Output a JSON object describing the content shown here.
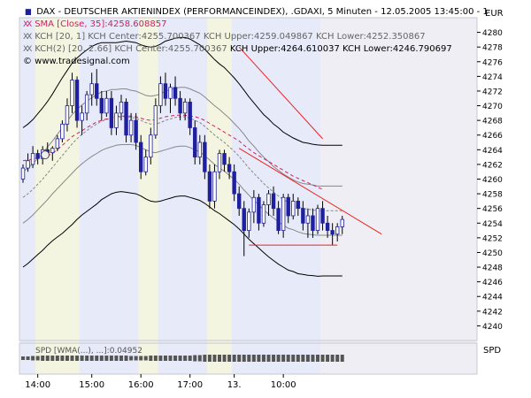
{
  "header": {
    "line1": "DAX  - DEUTSCHER AKTIENINDEX (PERFORMANCEINDEX), .GDAXI, 5 Minuten - 12.05.2005 13:45:00 - 1",
    "currency": "EUR",
    "line2": "SMA [Close, 35]:4258.608857",
    "line3": "KCH [20, 1] KCH Center:4255.700367 KCH Upper:4259.049867 KCH Lower:4252.350867",
    "line4a": "KCH(2) [20, 2.66] KCH Center:4255.700367 ",
    "line4b": "KCH Upper:4264.610037 KCH Lower:4246.790697",
    "source": "© www.tradesignal.com",
    "line1_mark": "▮▮",
    "line2_mark": "XX",
    "line3_mark": "XX",
    "line4_mark": "XX"
  },
  "subpanel": {
    "label": "SPD [WMA(...), ...]:0.04952",
    "axis_label": "SPD"
  },
  "colors": {
    "candle_up": "#1f1fa0",
    "candle_down": "#1f1fa0",
    "sma": "#cc2266",
    "kch_inner": "#888888",
    "kch_outer": "#000000",
    "trendline": "#ee2222",
    "zone_blue": "#e6eaf9",
    "zone_yellow": "#f3f5e0",
    "plot_bg": "#eeeef4"
  },
  "chart_data": {
    "type": "candlestick",
    "y_axis": {
      "min": 4238,
      "max": 4282,
      "ticks": [
        4240,
        4242,
        4244,
        4246,
        4248,
        4250,
        4252,
        4254,
        4256,
        4258,
        4260,
        4262,
        4264,
        4266,
        4268,
        4270,
        4272,
        4274,
        4276,
        4278,
        4280
      ],
      "side": "right"
    },
    "x_axis": {
      "tick_labels": [
        "14:00",
        "15:00",
        "16:00",
        "17:00",
        "13.",
        "10:00"
      ]
    },
    "candles": [
      {
        "o": 4260.0,
        "h": 4262.0,
        "l": 4259.5,
        "c": 4261.5
      },
      {
        "o": 4261.5,
        "h": 4263.5,
        "l": 4261.0,
        "c": 4262.5
      },
      {
        "o": 4262.0,
        "h": 4264.5,
        "l": 4261.5,
        "c": 4263.5
      },
      {
        "o": 4263.5,
        "h": 4264.0,
        "l": 4262.0,
        "c": 4262.8
      },
      {
        "o": 4262.8,
        "h": 4264.5,
        "l": 4262.0,
        "c": 4264.0
      },
      {
        "o": 4264.0,
        "h": 4265.0,
        "l": 4263.0,
        "c": 4263.6
      },
      {
        "o": 4263.6,
        "h": 4264.5,
        "l": 4262.5,
        "c": 4264.2
      },
      {
        "o": 4264.2,
        "h": 4266.0,
        "l": 4263.8,
        "c": 4265.5
      },
      {
        "o": 4265.5,
        "h": 4268.0,
        "l": 4265.0,
        "c": 4267.5
      },
      {
        "o": 4267.5,
        "h": 4271.0,
        "l": 4266.5,
        "c": 4270.0
      },
      {
        "o": 4270.0,
        "h": 4274.5,
        "l": 4269.0,
        "c": 4273.5
      },
      {
        "o": 4273.5,
        "h": 4274.0,
        "l": 4267.0,
        "c": 4268.0
      },
      {
        "o": 4268.0,
        "h": 4270.0,
        "l": 4266.0,
        "c": 4269.0
      },
      {
        "o": 4269.0,
        "h": 4272.0,
        "l": 4268.0,
        "c": 4271.5
      },
      {
        "o": 4271.5,
        "h": 4274.5,
        "l": 4270.0,
        "c": 4273.0
      },
      {
        "o": 4273.0,
        "h": 4275.0,
        "l": 4270.0,
        "c": 4271.0
      },
      {
        "o": 4271.0,
        "h": 4272.0,
        "l": 4268.0,
        "c": 4269.0
      },
      {
        "o": 4269.0,
        "h": 4272.0,
        "l": 4268.5,
        "c": 4271.0
      },
      {
        "o": 4271.0,
        "h": 4272.0,
        "l": 4266.0,
        "c": 4267.0
      },
      {
        "o": 4267.0,
        "h": 4270.0,
        "l": 4266.0,
        "c": 4269.0
      },
      {
        "o": 4269.0,
        "h": 4271.5,
        "l": 4268.0,
        "c": 4270.5
      },
      {
        "o": 4270.5,
        "h": 4271.0,
        "l": 4265.0,
        "c": 4266.0
      },
      {
        "o": 4266.0,
        "h": 4269.0,
        "l": 4265.0,
        "c": 4268.0
      },
      {
        "o": 4268.0,
        "h": 4269.0,
        "l": 4264.0,
        "c": 4265.0
      },
      {
        "o": 4265.0,
        "h": 4266.0,
        "l": 4260.0,
        "c": 4261.0
      },
      {
        "o": 4261.0,
        "h": 4264.0,
        "l": 4260.5,
        "c": 4263.0
      },
      {
        "o": 4263.0,
        "h": 4267.0,
        "l": 4262.0,
        "c": 4266.0
      },
      {
        "o": 4266.0,
        "h": 4271.0,
        "l": 4265.5,
        "c": 4270.0
      },
      {
        "o": 4270.0,
        "h": 4274.0,
        "l": 4269.0,
        "c": 4273.0
      },
      {
        "o": 4273.0,
        "h": 4274.5,
        "l": 4270.0,
        "c": 4271.0
      },
      {
        "o": 4271.0,
        "h": 4273.0,
        "l": 4269.0,
        "c": 4272.5
      },
      {
        "o": 4272.5,
        "h": 4274.0,
        "l": 4270.0,
        "c": 4271.0
      },
      {
        "o": 4271.0,
        "h": 4272.0,
        "l": 4268.0,
        "c": 4269.0
      },
      {
        "o": 4269.0,
        "h": 4271.0,
        "l": 4268.0,
        "c": 4270.5
      },
      {
        "o": 4270.5,
        "h": 4271.0,
        "l": 4266.0,
        "c": 4267.0
      },
      {
        "o": 4267.0,
        "h": 4268.0,
        "l": 4262.0,
        "c": 4263.0
      },
      {
        "o": 4263.0,
        "h": 4266.0,
        "l": 4262.0,
        "c": 4265.0
      },
      {
        "o": 4265.0,
        "h": 4266.0,
        "l": 4260.0,
        "c": 4261.0
      },
      {
        "o": 4261.0,
        "h": 4262.0,
        "l": 4256.0,
        "c": 4257.0
      },
      {
        "o": 4257.0,
        "h": 4262.0,
        "l": 4256.0,
        "c": 4261.0
      },
      {
        "o": 4261.0,
        "h": 4264.0,
        "l": 4260.0,
        "c": 4263.5
      },
      {
        "o": 4263.5,
        "h": 4264.0,
        "l": 4261.0,
        "c": 4262.0
      },
      {
        "o": 4262.0,
        "h": 4263.0,
        "l": 4260.0,
        "c": 4261.0
      },
      {
        "o": 4261.0,
        "h": 4262.0,
        "l": 4257.0,
        "c": 4258.0
      },
      {
        "o": 4258.0,
        "h": 4259.0,
        "l": 4255.0,
        "c": 4256.0
      },
      {
        "o": 4256.0,
        "h": 4257.0,
        "l": 4249.5,
        "c": 4253.0
      },
      {
        "o": 4253.0,
        "h": 4256.0,
        "l": 4252.0,
        "c": 4255.5
      },
      {
        "o": 4255.5,
        "h": 4258.5,
        "l": 4254.0,
        "c": 4257.5
      },
      {
        "o": 4257.5,
        "h": 4258.0,
        "l": 4253.0,
        "c": 4254.0
      },
      {
        "o": 4254.0,
        "h": 4257.0,
        "l": 4253.5,
        "c": 4256.5
      },
      {
        "o": 4256.5,
        "h": 4258.5,
        "l": 4255.0,
        "c": 4258.0
      },
      {
        "o": 4258.0,
        "h": 4259.0,
        "l": 4255.0,
        "c": 4256.0
      },
      {
        "o": 4256.0,
        "h": 4257.0,
        "l": 4252.5,
        "c": 4253.0
      },
      {
        "o": 4253.0,
        "h": 4258.0,
        "l": 4252.0,
        "c": 4257.5
      },
      {
        "o": 4257.5,
        "h": 4258.0,
        "l": 4254.0,
        "c": 4255.0
      },
      {
        "o": 4255.0,
        "h": 4258.0,
        "l": 4254.5,
        "c": 4257.0
      },
      {
        "o": 4257.0,
        "h": 4257.5,
        "l": 4255.0,
        "c": 4256.0
      },
      {
        "o": 4256.0,
        "h": 4257.0,
        "l": 4253.0,
        "c": 4254.0
      },
      {
        "o": 4254.0,
        "h": 4256.0,
        "l": 4252.0,
        "c": 4255.0
      },
      {
        "o": 4255.0,
        "h": 4256.0,
        "l": 4252.0,
        "c": 4253.0
      },
      {
        "o": 4253.0,
        "h": 4256.5,
        "l": 4252.5,
        "c": 4256.0
      },
      {
        "o": 4256.0,
        "h": 4257.0,
        "l": 4253.0,
        "c": 4254.0
      },
      {
        "o": 4254.0,
        "h": 4255.0,
        "l": 4252.0,
        "c": 4253.0
      },
      {
        "o": 4253.0,
        "h": 4254.0,
        "l": 4251.0,
        "c": 4252.5
      },
      {
        "o": 4252.5,
        "h": 4254.0,
        "l": 4251.5,
        "c": 4253.5
      },
      {
        "o": 4253.5,
        "h": 4255.0,
        "l": 4252.5,
        "c": 4254.5
      }
    ],
    "sma": [
      4262.5,
      4262.6,
      4262.7,
      4262.9,
      4263.0,
      4263.2,
      4263.5,
      4264.0,
      4264.6,
      4265.2,
      4265.8,
      4266.2,
      4266.6,
      4267.0,
      4267.4,
      4267.8,
      4268.0,
      4268.2,
      4268.4,
      4268.5,
      4268.6,
      4268.6,
      4268.6,
      4268.5,
      4268.3,
      4268.1,
      4268.0,
      4268.1,
      4268.3,
      4268.5,
      4268.6,
      4268.7,
      4268.7,
      4268.7,
      4268.6,
      4268.5,
      4268.3,
      4268.0,
      4267.6,
      4267.2,
      4266.8,
      4266.4,
      4266.0,
      4265.6,
      4265.2,
      4264.6,
      4264.1,
      4263.6,
      4263.2,
      4262.8,
      4262.4,
      4262.0,
      4261.6,
      4261.2,
      4260.8,
      4260.4,
      4260.1,
      4259.8,
      4259.5,
      4259.2,
      4258.9,
      4258.6
    ],
    "kch_center": [
      4257.5,
      4258.0,
      4258.6,
      4259.3,
      4260.0,
      4260.8,
      4261.6,
      4262.4,
      4263.2,
      4264.0,
      4264.8,
      4265.5,
      4266.1,
      4266.6,
      4267.1,
      4267.5,
      4267.9,
      4268.1,
      4268.3,
      4268.4,
      4268.5,
      4268.5,
      4268.4,
      4268.3,
      4268.0,
      4267.7,
      4267.5,
      4267.5,
      4267.7,
      4268.0,
      4268.2,
      4268.4,
      4268.5,
      4268.5,
      4268.3,
      4268.0,
      4267.7,
      4267.2,
      4266.6,
      4266.0,
      4265.5,
      4265.0,
      4264.4,
      4263.8,
      4263.1,
      4262.3,
      4261.5,
      4260.8,
      4260.1,
      4259.4,
      4258.8,
      4258.2,
      4257.7,
      4257.2,
      4256.8,
      4256.5,
      4256.2,
      4256.0,
      4255.9,
      4255.8,
      4255.7,
      4255.7,
      4255.7,
      4255.7,
      4255.7,
      4255.7
    ],
    "kch_inner_width": [
      3.5,
      3.5,
      3.5,
      3.5,
      3.5,
      3.6,
      3.6,
      3.7,
      3.8,
      3.9,
      4.0,
      4.0,
      4.0,
      4.0,
      4.0,
      4.0,
      4.0,
      3.9,
      3.9,
      3.8,
      3.8,
      3.8,
      3.7,
      3.7,
      3.7,
      3.7,
      3.8,
      3.9,
      3.9,
      4.0,
      4.0,
      4.0,
      4.0,
      4.0,
      4.0,
      4.0,
      4.0,
      4.0,
      4.0,
      4.0,
      4.0,
      3.9,
      3.9,
      3.8,
      3.8,
      3.8,
      3.7,
      3.7,
      3.6,
      3.6,
      3.6,
      3.5,
      3.5,
      3.5,
      3.5,
      3.4,
      3.4,
      3.4,
      3.4,
      3.4,
      3.35,
      3.35,
      3.35,
      3.35,
      3.35,
      3.35
    ],
    "kch_outer_width": [
      9.5,
      9.5,
      9.5,
      9.6,
      9.7,
      9.8,
      10.0,
      10.3,
      10.6,
      10.8,
      11.0,
      11.0,
      11.0,
      11.0,
      11.0,
      10.9,
      10.7,
      10.5,
      10.3,
      10.2,
      10.2,
      10.3,
      10.3,
      10.3,
      10.3,
      10.4,
      10.5,
      10.6,
      10.7,
      10.8,
      10.8,
      10.8,
      10.8,
      10.8,
      10.8,
      10.7,
      10.6,
      10.5,
      10.4,
      10.3,
      10.2,
      10.2,
      10.1,
      10.0,
      9.9,
      9.8,
      9.7,
      9.6,
      9.5,
      9.4,
      9.4,
      9.3,
      9.3,
      9.2,
      9.2,
      9.1,
      9.1,
      9.0,
      9.0,
      8.95,
      8.95,
      8.9,
      8.9,
      8.9,
      8.9,
      8.9
    ],
    "trendlines": [
      {
        "x0": 44,
        "y0": 4278.0,
        "x1": 61,
        "y1": 4265.5
      },
      {
        "x0": 44,
        "y0": 4264.2,
        "x1": 73,
        "y1": 4252.5
      }
    ],
    "support_line": {
      "x0": 46,
      "x1": 64,
      "y": 4251.0
    },
    "zones": [
      {
        "from": 0,
        "to": 3,
        "color": "zone_blue"
      },
      {
        "from": 3,
        "to": 12,
        "color": "zone_yellow"
      },
      {
        "from": 12,
        "to": 24,
        "color": "zone_blue"
      },
      {
        "from": 24,
        "to": 28,
        "color": "zone_yellow"
      },
      {
        "from": 28,
        "to": 38,
        "color": "zone_blue"
      },
      {
        "from": 38,
        "to": 43,
        "color": "zone_yellow"
      },
      {
        "from": 43,
        "to": 61,
        "color": "zone_blue"
      }
    ],
    "spd_values": [
      2,
      2,
      2.5,
      2.5,
      3,
      3,
      3,
      3,
      3,
      3,
      3,
      3,
      3,
      3,
      3,
      3,
      3,
      3,
      3,
      3,
      3,
      3,
      2.5,
      2.5,
      2.5,
      2.5,
      3,
      3,
      3,
      3,
      3,
      3,
      3,
      3,
      3,
      3.5,
      3.5,
      4,
      4,
      4,
      4,
      4,
      4,
      4,
      4,
      4,
      4,
      4,
      4,
      4,
      4,
      4,
      4,
      4,
      4,
      4,
      4,
      4,
      4,
      4,
      4,
      4,
      4,
      4,
      4,
      4
    ]
  }
}
